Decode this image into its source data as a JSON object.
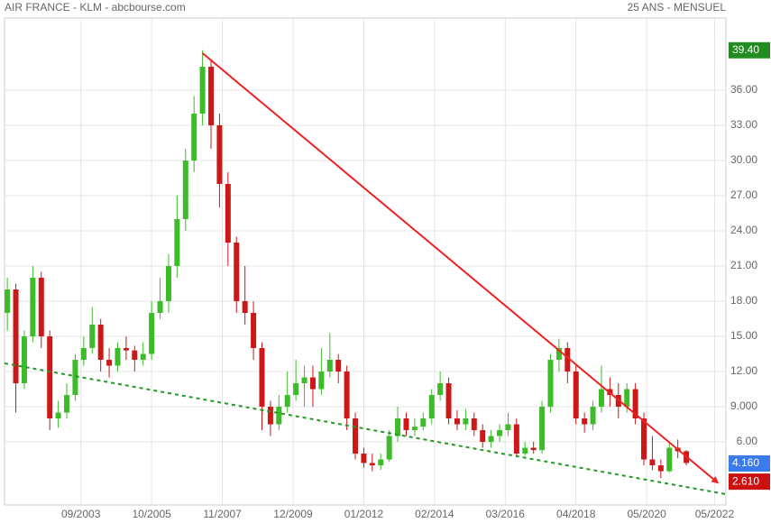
{
  "chart_data": {
    "type": "candlestick",
    "title": "AIR FRANCE - KLM - abcbourse.com",
    "subtitle": "25 ANS - MENSUEL",
    "x": [
      "07/2001",
      "10/2001",
      "01/2002",
      "04/2002",
      "07/2002",
      "10/2002",
      "01/2003",
      "04/2003",
      "07/2003",
      "10/2003",
      "01/2004",
      "04/2004",
      "07/2004",
      "10/2004",
      "01/2005",
      "04/2005",
      "07/2005",
      "10/2005",
      "01/2006",
      "04/2006",
      "07/2006",
      "10/2006",
      "01/2007",
      "04/2007",
      "07/2007",
      "10/2007",
      "01/2008",
      "04/2008",
      "07/2008",
      "10/2008",
      "01/2009",
      "04/2009",
      "07/2009",
      "10/2009",
      "01/2010",
      "04/2010",
      "07/2010",
      "10/2010",
      "01/2011",
      "04/2011",
      "07/2011",
      "10/2011",
      "01/2012",
      "04/2012",
      "07/2012",
      "10/2012",
      "01/2013",
      "04/2013",
      "07/2013",
      "10/2013",
      "01/2014",
      "04/2014",
      "07/2014",
      "10/2014",
      "01/2015",
      "04/2015",
      "07/2015",
      "10/2015",
      "01/2016",
      "04/2016",
      "07/2016",
      "10/2016",
      "01/2017",
      "04/2017",
      "07/2017",
      "10/2017",
      "01/2018",
      "04/2018",
      "07/2018",
      "10/2018",
      "01/2019",
      "04/2019",
      "07/2019",
      "10/2019",
      "01/2020",
      "04/2020",
      "07/2020",
      "10/2020",
      "01/2021",
      "04/2021",
      "07/2021"
    ],
    "open": [
      17,
      19,
      11,
      15,
      20,
      15,
      8,
      8.5,
      10,
      13,
      14,
      16,
      13,
      12.5,
      14,
      13.8,
      13,
      13.5,
      17,
      18,
      21,
      25,
      30,
      34,
      38,
      33,
      28,
      23,
      18,
      17,
      14,
      9,
      7.5,
      9,
      10,
      11,
      11.5,
      10.5,
      12,
      13,
      12,
      8,
      5,
      4.2,
      4,
      4.5,
      6.5,
      8,
      7,
      7.3,
      8,
      10,
      11,
      8,
      7.5,
      8,
      7,
      6,
      6.5,
      7,
      7.5,
      5,
      5.5,
      5.3,
      9,
      13,
      14,
      12,
      8,
      7.5,
      9,
      10.5,
      10,
      9,
      10.5,
      8,
      4.5,
      4,
      3.5,
      5.5,
      5.2
    ],
    "high": [
      20,
      19.5,
      15.5,
      21,
      20.5,
      15.5,
      9.5,
      11,
      13.5,
      15,
      17.5,
      16.5,
      14,
      14.5,
      15,
      14.2,
      14.5,
      18,
      20,
      22,
      27,
      31,
      35.5,
      39.4,
      38.5,
      34,
      29,
      23.5,
      21,
      18,
      14.5,
      9.5,
      10,
      12,
      13,
      12.5,
      12.5,
      14,
      15.3,
      13.5,
      12.5,
      8.5,
      5.5,
      5,
      5,
      7,
      9,
      8.5,
      8,
      8.5,
      10.5,
      12,
      11.5,
      8.7,
      8.8,
      8.5,
      7.5,
      7,
      7.5,
      8.5,
      8,
      6,
      6,
      9.5,
      13.5,
      14.8,
      14.5,
      12.5,
      8.5,
      9.5,
      12.5,
      11.5,
      11,
      11,
      11,
      8.5,
      6.5,
      4.5,
      6,
      6.2,
      5.3
    ],
    "low": [
      15.5,
      8.5,
      10.5,
      14.5,
      14,
      7,
      7.2,
      8,
      9.5,
      12.5,
      13.5,
      12,
      11.5,
      12,
      13,
      12,
      12.5,
      13,
      16.5,
      17,
      20,
      24,
      29,
      33,
      31,
      26,
      21,
      17,
      16,
      13,
      7,
      6.5,
      7,
      8.5,
      9.5,
      9,
      9,
      10,
      11.5,
      11,
      7,
      4.5,
      3.8,
      3.5,
      3.6,
      4.3,
      6,
      6.5,
      6.5,
      7,
      7.5,
      9.5,
      7.5,
      7,
      7,
      6.5,
      5.5,
      5.5,
      6,
      6.5,
      4.8,
      4.8,
      5,
      5,
      8.5,
      12,
      11,
      7.5,
      6.8,
      7,
      8.5,
      9,
      8,
      8.5,
      7.5,
      4,
      3.6,
      2.9,
      3.4,
      4.6,
      4
    ],
    "close": [
      19,
      11,
      15,
      20,
      15,
      8,
      8.5,
      10,
      13,
      14,
      16,
      13,
      12.5,
      14,
      13.8,
      13,
      13.5,
      17,
      18,
      21,
      25,
      30,
      34,
      38,
      33,
      28,
      23,
      18,
      17,
      14,
      9,
      7.5,
      9,
      10,
      11,
      11.5,
      10.5,
      12,
      13,
      12,
      8,
      5,
      4.2,
      4,
      4.5,
      6.5,
      8,
      7,
      7.3,
      8,
      10,
      11,
      8,
      7.5,
      8,
      7,
      6,
      6.5,
      7,
      7.5,
      5,
      5.5,
      5.3,
      9,
      13,
      14,
      12,
      8,
      7.5,
      9,
      10.5,
      10,
      9,
      10.5,
      8,
      4.5,
      4,
      3.5,
      5.5,
      5.2,
      4.2
    ],
    "up_color": "#3dbb2a",
    "down_color": "#cc1818",
    "xlim": [
      "06/2001",
      "09/2022"
    ],
    "xticks": [
      "09/2003",
      "10/2005",
      "11/2007",
      "12/2009",
      "01/2012",
      "02/2014",
      "03/2016",
      "04/2018",
      "05/2020",
      "05/2022"
    ],
    "ylim": [
      0.62,
      42.15
    ],
    "yticks": [
      {
        "value": 6,
        "label": "6.00"
      },
      {
        "value": 9,
        "label": "9.000"
      },
      {
        "value": 12,
        "label": "12.00"
      },
      {
        "value": 15,
        "label": "15.00"
      },
      {
        "value": 18,
        "label": "18.00"
      },
      {
        "value": 21,
        "label": "21.00"
      },
      {
        "value": 24,
        "label": "24.00"
      },
      {
        "value": 27,
        "label": "27.00"
      },
      {
        "value": 30,
        "label": "30.00"
      },
      {
        "value": 33,
        "label": "33.00"
      },
      {
        "value": 36,
        "label": "36.00"
      }
    ],
    "grid": true,
    "lines": [
      {
        "x": [
          "04/2007",
          "06/2022"
        ],
        "y": [
          39.15,
          2.54
        ],
        "color": "#ee2222",
        "style": "solid",
        "arrow": true
      },
      {
        "x": [
          "06/2001",
          "09/2022"
        ],
        "y": [
          12.7,
          1.54
        ],
        "color": "#229922",
        "style": "dashed",
        "arrow": false
      }
    ],
    "price_markers": [
      {
        "value": 39.4,
        "label": "39.40",
        "color": "#228b22"
      },
      {
        "value": 4.16,
        "label": "4.160",
        "color": "#3a7bee"
      },
      {
        "value": 2.61,
        "label": "2.610",
        "color": "#cc1111"
      }
    ]
  }
}
